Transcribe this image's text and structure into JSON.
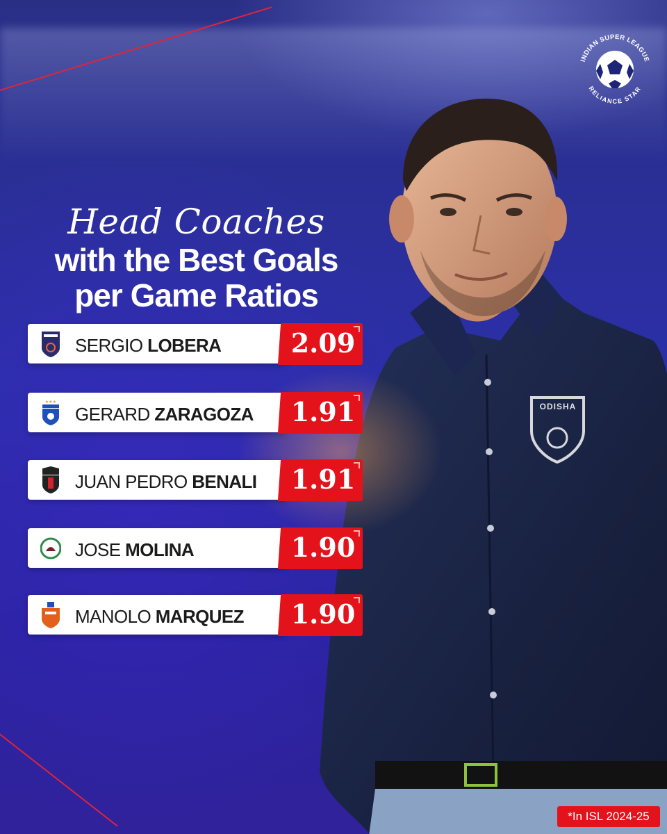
{
  "title": {
    "line1": "Head Coaches",
    "line2": "with the Best Goals",
    "line3": "per Game Ratios"
  },
  "logo": {
    "top_text": "INDIAN SUPER LEAGUE",
    "bottom_text": "RELIANCE STAR",
    "icon": "football-icon"
  },
  "coaches": [
    {
      "first": "SERGIO",
      "last": "LOBERA",
      "value": "2.09",
      "club_badge": "odisha-fc-badge-icon",
      "badge_color": "#2a2a6e"
    },
    {
      "first": "GERARD",
      "last": "ZARAGOZA",
      "value": "1.91",
      "club_badge": "bengaluru-fc-badge-icon",
      "badge_color": "#1f4fb8"
    },
    {
      "first": "JUAN PEDRO",
      "last": "BENALI",
      "value": "1.91",
      "club_badge": "northeast-united-badge-icon",
      "badge_color": "#222222"
    },
    {
      "first": "JOSE",
      "last": "MOLINA",
      "value": "1.90",
      "club_badge": "mohun-bagan-badge-icon",
      "badge_color": "#2f8a4a"
    },
    {
      "first": "MANOLO",
      "last": "MARQUEZ",
      "value": "1.90",
      "club_badge": "fc-goa-badge-icon",
      "badge_color": "#e2601c"
    }
  ],
  "shirt_badge_text": "ODISHA",
  "footnote": "*In ISL 2024-25",
  "colors": {
    "accent_red": "#e3121b",
    "background_blue": "#2b2fa8",
    "shirt_navy": "#1a2440"
  }
}
